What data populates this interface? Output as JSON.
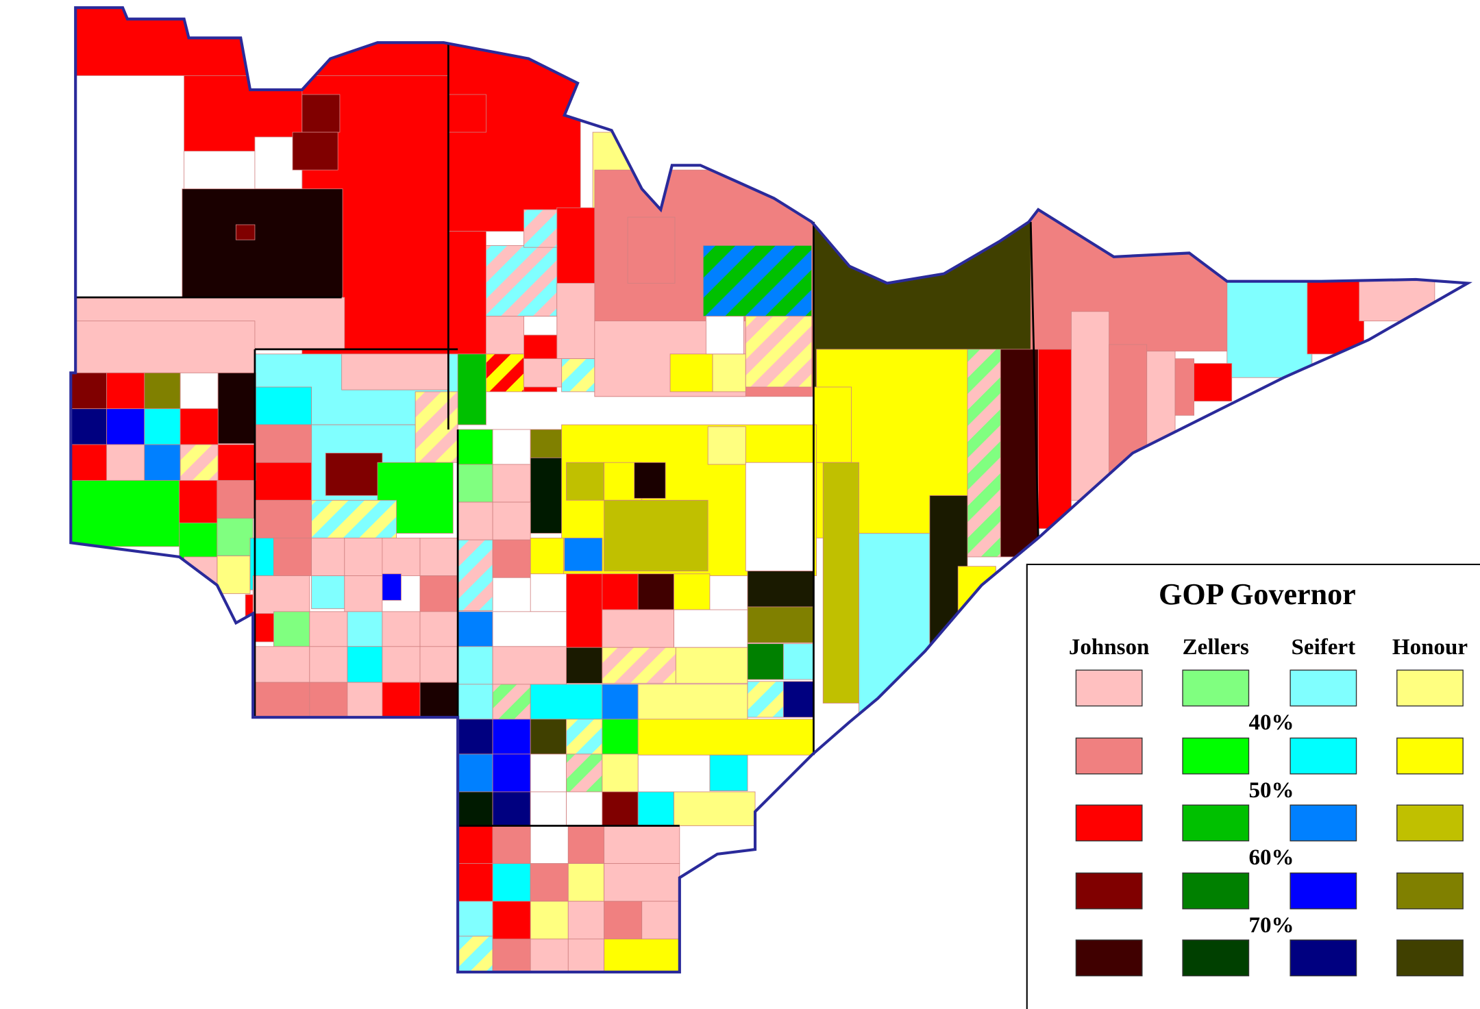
{
  "legend": {
    "title": "GOP Governor",
    "candidates": [
      {
        "name": "Johnson",
        "colors": [
          "#ffc0c0",
          "#f08080",
          "#ff0000",
          "#800000",
          "#400000"
        ]
      },
      {
        "name": "Zellers",
        "colors": [
          "#80ff80",
          "#00ff00",
          "#00c000",
          "#008000",
          "#004000"
        ]
      },
      {
        "name": "Seifert",
        "colors": [
          "#80ffff",
          "#00ffff",
          "#0080ff",
          "#0000ff",
          "#000080"
        ]
      },
      {
        "name": "Honour",
        "colors": [
          "#ffff80",
          "#ffff00",
          "#c0c000",
          "#808000",
          "#404000"
        ]
      }
    ],
    "thresholds": [
      "40%",
      "50%",
      "60%",
      "70%"
    ]
  }
}
